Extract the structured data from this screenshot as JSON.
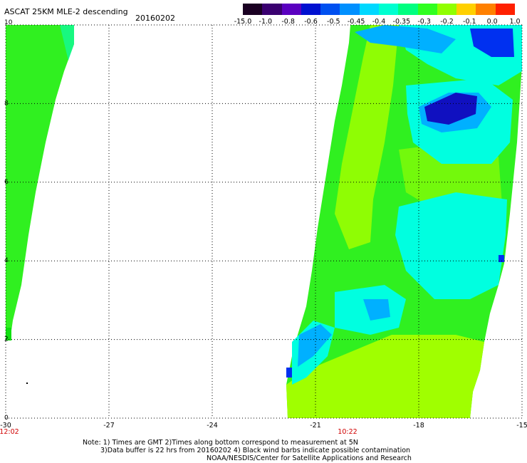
{
  "header": {
    "title": "ASCAT 25KM MLE-2 descending",
    "date": "20160202"
  },
  "colorbar": {
    "labels": [
      "-15.0",
      "-1.0",
      "-0.8",
      "-0.6",
      "-0.5",
      "-0.45",
      "-0.4",
      "-0.35",
      "-0.3",
      "-0.2",
      "-0.1",
      "0.0",
      "1.0"
    ],
    "colors": [
      "#1a0022",
      "#3a0070",
      "#5a00c0",
      "#0010d0",
      "#0050f0",
      "#0090ff",
      "#00d8ff",
      "#00ffd0",
      "#00ff80",
      "#30ff20",
      "#90ff00",
      "#ffd000",
      "#ff8000",
      "#ff2000"
    ]
  },
  "map": {
    "lat_labels": [
      "10",
      "8",
      "6",
      "4",
      "2",
      "0"
    ],
    "lon_labels": [
      "-30",
      "-27",
      "-24",
      "-21",
      "-18",
      "-15"
    ],
    "time_labels": [
      {
        "text": "12:02",
        "lon": -30
      },
      {
        "text": "10:22",
        "lon": -19.7
      }
    ],
    "swath_colors": {
      "green": "#30f020",
      "light_green": "#a0ff00",
      "cyan": "#00ffe0",
      "light_blue": "#00b0ff",
      "blue": "#0030f0",
      "dark_blue": "#1010c0"
    }
  },
  "footer": {
    "line1": "Note: 1) Times are GMT 2)Times along bottom correspond to measurement at 5N",
    "line2": "3)Data buffer is 22 hrs from 20160202 4) Black wind barbs indicate possible contamination",
    "line3": "NOAA/NESDIS/Center for Satellite Applications and Research"
  }
}
